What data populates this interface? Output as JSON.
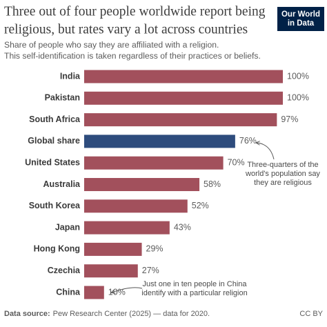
{
  "chart_data": {
    "type": "bar",
    "orientation": "horizontal",
    "title": [
      "Three out of four people worldwide report being",
      "religious, but rates vary a lot across countries"
    ],
    "subtitle": [
      "Share of people who say they are affiliated with a religion.",
      "This self-identification is taken regardless of their practices or beliefs."
    ],
    "logo": [
      "Our World",
      "in Data"
    ],
    "categories": [
      "India",
      "Pakistan",
      "South Africa",
      "Global share",
      "United States",
      "Australia",
      "South Korea",
      "Japan",
      "Hong Kong",
      "Czechia",
      "China"
    ],
    "values": [
      100,
      100,
      97,
      76,
      70,
      58,
      52,
      43,
      29,
      27,
      10
    ],
    "value_labels": [
      "100%",
      "100%",
      "97%",
      "76%",
      "70%",
      "58%",
      "52%",
      "43%",
      "29%",
      "27%",
      "10%"
    ],
    "colors": [
      "#a2505c",
      "#a2505c",
      "#a2505c",
      "#2e4c7d",
      "#a2505c",
      "#a2505c",
      "#a2505c",
      "#a2505c",
      "#a2505c",
      "#a2505c",
      "#a2505c"
    ],
    "xlim": [
      0,
      100
    ],
    "annotations": [
      {
        "category": 3,
        "lines": [
          "Three-quarters of the",
          "world's population say",
          "they are religious"
        ]
      },
      {
        "category": 10,
        "lines": [
          "Just one in ten people in China",
          "identify with a particular religion"
        ]
      }
    ],
    "source_label": "Data source:",
    "source": "Pew Research Center (2025) — data for 2020.",
    "license": "CC BY"
  }
}
